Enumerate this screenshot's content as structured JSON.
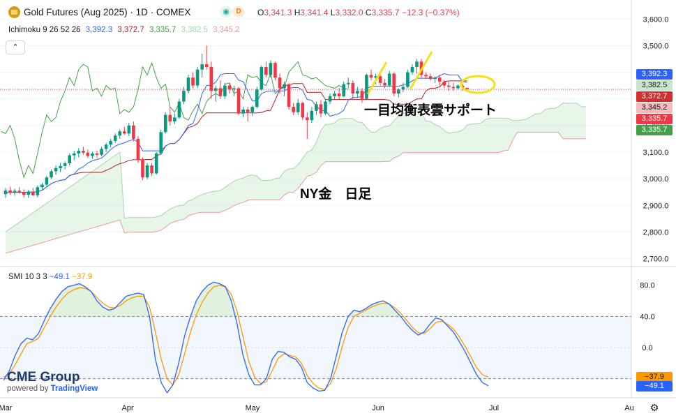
{
  "header": {
    "symbol_title": "Gold Futures (Aug 2025) · 1D · COMEX",
    "eye_icon": "eye-icon",
    "badge": "D",
    "ohlc": {
      "o_label": "O",
      "o": "3,341.3",
      "h_label": "H",
      "h": "3,341.4",
      "l_label": "L",
      "l": "3,332.0",
      "c_label": "C",
      "c": "3,335.7",
      "change": "−12.3 (−0.37%)"
    }
  },
  "ichimoku": {
    "label": "Ichimoku 9 26 52 26",
    "values": [
      "3,392.3",
      "3,372.7",
      "3,335.7",
      "3,382.5",
      "3,345.2"
    ],
    "colors": [
      "#2962ff",
      "#b71c1c",
      "#43a047",
      "#a5d6a7",
      "#ef9a9a"
    ]
  },
  "smi": {
    "label": "SMI 10 3 3",
    "values": [
      "−49.1",
      "−37.9"
    ]
  },
  "price_axis": {
    "ticks": [
      "3,600.0",
      "3,500.0",
      "3,400.0",
      "3,300.0",
      "3,200.0",
      "3,100.0",
      "3,000.0",
      "2,900.0",
      "2,800.0",
      "2,700.0"
    ]
  },
  "smi_axis": {
    "ticks": [
      "80.0",
      "40.0",
      "0.0"
    ]
  },
  "time_axis": {
    "labels": [
      "Mar",
      "Apr",
      "May",
      "Jun",
      "Jul",
      "Au"
    ]
  },
  "price_tags": [
    {
      "text": "3,392.3",
      "color": "#2962ff",
      "text_color": "#ffffff"
    },
    {
      "text": "3,382.5",
      "color": "#c8e6c9",
      "text_color": "#131722"
    },
    {
      "text": "3,372.7",
      "color": "#d32f2f",
      "text_color": "#ffffff"
    },
    {
      "text": "3,345.2",
      "color": "#f8bbbb",
      "text_color": "#131722"
    },
    {
      "text": "3,335.7",
      "color": "#f23645",
      "text_color": "#ffffff"
    },
    {
      "text": "3,335.7",
      "color": "#43a047",
      "text_color": "#ffffff"
    }
  ],
  "smi_tags": [
    {
      "text": "−37.9",
      "color": "#ff9800",
      "text_color": "#131722"
    },
    {
      "text": "−49.1",
      "color": "#2962ff",
      "text_color": "#ffffff"
    }
  ],
  "annotations": {
    "support": "一目均衡表雲サポート",
    "title": "NY金　日足"
  },
  "logo": {
    "main": "CME Group",
    "sub_prefix": "powered by",
    "sub_brand": "TradingView"
  },
  "chart_data": {
    "type": "candlestick",
    "instrument": "Gold Futures (Aug 2025)",
    "interval": "1D",
    "price_range": [
      2670,
      3640
    ],
    "candles": [
      {
        "o": 2942,
        "h": 2965,
        "l": 2928,
        "c": 2956
      },
      {
        "o": 2956,
        "h": 2970,
        "l": 2940,
        "c": 2948
      },
      {
        "o": 2948,
        "h": 2962,
        "l": 2936,
        "c": 2955
      },
      {
        "o": 2955,
        "h": 2968,
        "l": 2945,
        "c": 2950
      },
      {
        "o": 2950,
        "h": 2960,
        "l": 2930,
        "c": 2940
      },
      {
        "o": 2940,
        "h": 2958,
        "l": 2928,
        "c": 2952
      },
      {
        "o": 2952,
        "h": 2965,
        "l": 2935,
        "c": 2938
      },
      {
        "o": 2938,
        "h": 2975,
        "l": 2930,
        "c": 2968
      },
      {
        "o": 2968,
        "h": 2985,
        "l": 2958,
        "c": 2978
      },
      {
        "o": 2978,
        "h": 3010,
        "l": 2970,
        "c": 3005
      },
      {
        "o": 3005,
        "h": 3035,
        "l": 2998,
        "c": 3028
      },
      {
        "o": 3028,
        "h": 3050,
        "l": 3015,
        "c": 3040
      },
      {
        "o": 3040,
        "h": 3060,
        "l": 3025,
        "c": 3048
      },
      {
        "o": 3048,
        "h": 3065,
        "l": 3035,
        "c": 3058
      },
      {
        "o": 3058,
        "h": 3095,
        "l": 3050,
        "c": 3088
      },
      {
        "o": 3088,
        "h": 3105,
        "l": 3070,
        "c": 3095
      },
      {
        "o": 3095,
        "h": 3115,
        "l": 3080,
        "c": 3105
      },
      {
        "o": 3105,
        "h": 3120,
        "l": 3090,
        "c": 3098
      },
      {
        "o": 3098,
        "h": 3110,
        "l": 3078,
        "c": 3085
      },
      {
        "o": 3085,
        "h": 3102,
        "l": 3075,
        "c": 3095
      },
      {
        "o": 3095,
        "h": 3105,
        "l": 3080,
        "c": 3090
      },
      {
        "o": 3090,
        "h": 3120,
        "l": 3085,
        "c": 3112
      },
      {
        "o": 3112,
        "h": 3135,
        "l": 3100,
        "c": 3128
      },
      {
        "o": 3128,
        "h": 3150,
        "l": 3118,
        "c": 3142
      },
      {
        "o": 3142,
        "h": 3170,
        "l": 3135,
        "c": 3162
      },
      {
        "o": 3162,
        "h": 3185,
        "l": 3150,
        "c": 3178
      },
      {
        "o": 3178,
        "h": 3195,
        "l": 3165,
        "c": 3170
      },
      {
        "o": 3170,
        "h": 3210,
        "l": 3160,
        "c": 3200
      },
      {
        "o": 3200,
        "h": 3215,
        "l": 3140,
        "c": 3150
      },
      {
        "o": 3150,
        "h": 3160,
        "l": 3060,
        "c": 3070
      },
      {
        "o": 3070,
        "h": 3080,
        "l": 2995,
        "c": 3005
      },
      {
        "o": 3005,
        "h": 3060,
        "l": 2998,
        "c": 3050
      },
      {
        "o": 3050,
        "h": 3060,
        "l": 3010,
        "c": 3020
      },
      {
        "o": 3020,
        "h": 3100,
        "l": 3015,
        "c": 3095
      },
      {
        "o": 3095,
        "h": 3185,
        "l": 3090,
        "c": 3175
      },
      {
        "o": 3175,
        "h": 3250,
        "l": 3170,
        "c": 3240
      },
      {
        "o": 3240,
        "h": 3270,
        "l": 3200,
        "c": 3215
      },
      {
        "o": 3215,
        "h": 3245,
        "l": 3205,
        "c": 3230
      },
      {
        "o": 3230,
        "h": 3300,
        "l": 3225,
        "c": 3290
      },
      {
        "o": 3290,
        "h": 3345,
        "l": 3280,
        "c": 3330
      },
      {
        "o": 3330,
        "h": 3390,
        "l": 3320,
        "c": 3380
      },
      {
        "o": 3380,
        "h": 3400,
        "l": 3340,
        "c": 3350
      },
      {
        "o": 3350,
        "h": 3420,
        "l": 3340,
        "c": 3410
      },
      {
        "o": 3410,
        "h": 3470,
        "l": 3380,
        "c": 3430
      },
      {
        "o": 3430,
        "h": 3500,
        "l": 3410,
        "c": 3420
      },
      {
        "o": 3420,
        "h": 3440,
        "l": 3300,
        "c": 3330
      },
      {
        "o": 3330,
        "h": 3350,
        "l": 3290,
        "c": 3340
      },
      {
        "o": 3340,
        "h": 3370,
        "l": 3300,
        "c": 3310
      },
      {
        "o": 3310,
        "h": 3360,
        "l": 3300,
        "c": 3350
      },
      {
        "o": 3350,
        "h": 3360,
        "l": 3320,
        "c": 3335
      },
      {
        "o": 3335,
        "h": 3350,
        "l": 3310,
        "c": 3340
      },
      {
        "o": 3340,
        "h": 3345,
        "l": 3240,
        "c": 3245
      },
      {
        "o": 3245,
        "h": 3270,
        "l": 3230,
        "c": 3260
      },
      {
        "o": 3260,
        "h": 3270,
        "l": 3215,
        "c": 3250
      },
      {
        "o": 3250,
        "h": 3275,
        "l": 3235,
        "c": 3270
      },
      {
        "o": 3270,
        "h": 3345,
        "l": 3265,
        "c": 3335
      },
      {
        "o": 3335,
        "h": 3425,
        "l": 3330,
        "c": 3420
      },
      {
        "o": 3420,
        "h": 3440,
        "l": 3380,
        "c": 3390
      },
      {
        "o": 3390,
        "h": 3445,
        "l": 3380,
        "c": 3435
      },
      {
        "o": 3435,
        "h": 3440,
        "l": 3370,
        "c": 3380
      },
      {
        "o": 3380,
        "h": 3395,
        "l": 3320,
        "c": 3340
      },
      {
        "o": 3340,
        "h": 3365,
        "l": 3310,
        "c": 3355
      },
      {
        "o": 3355,
        "h": 3360,
        "l": 3260,
        "c": 3270
      },
      {
        "o": 3270,
        "h": 3285,
        "l": 3240,
        "c": 3250
      },
      {
        "o": 3250,
        "h": 3300,
        "l": 3240,
        "c": 3285
      },
      {
        "o": 3285,
        "h": 3290,
        "l": 3220,
        "c": 3230
      },
      {
        "o": 3230,
        "h": 3250,
        "l": 3150,
        "c": 3220
      },
      {
        "o": 3220,
        "h": 3270,
        "l": 3210,
        "c": 3255
      },
      {
        "o": 3255,
        "h": 3290,
        "l": 3240,
        "c": 3280
      },
      {
        "o": 3280,
        "h": 3295,
        "l": 3230,
        "c": 3245
      },
      {
        "o": 3245,
        "h": 3300,
        "l": 3240,
        "c": 3290
      },
      {
        "o": 3290,
        "h": 3320,
        "l": 3280,
        "c": 3310
      },
      {
        "o": 3310,
        "h": 3330,
        "l": 3295,
        "c": 3320
      },
      {
        "o": 3320,
        "h": 3340,
        "l": 3300,
        "c": 3310
      },
      {
        "o": 3310,
        "h": 3365,
        "l": 3305,
        "c": 3355
      },
      {
        "o": 3355,
        "h": 3380,
        "l": 3340,
        "c": 3360
      },
      {
        "o": 3360,
        "h": 3370,
        "l": 3300,
        "c": 3320
      },
      {
        "o": 3320,
        "h": 3345,
        "l": 3305,
        "c": 3330
      },
      {
        "o": 3330,
        "h": 3340,
        "l": 3285,
        "c": 3300
      },
      {
        "o": 3300,
        "h": 3395,
        "l": 3295,
        "c": 3390
      },
      {
        "o": 3390,
        "h": 3410,
        "l": 3370,
        "c": 3380
      },
      {
        "o": 3380,
        "h": 3395,
        "l": 3355,
        "c": 3385
      },
      {
        "o": 3385,
        "h": 3400,
        "l": 3350,
        "c": 3360
      },
      {
        "o": 3360,
        "h": 3375,
        "l": 3340,
        "c": 3350
      },
      {
        "o": 3350,
        "h": 3405,
        "l": 3345,
        "c": 3395
      },
      {
        "o": 3395,
        "h": 3400,
        "l": 3310,
        "c": 3320
      },
      {
        "o": 3320,
        "h": 3340,
        "l": 3305,
        "c": 3335
      },
      {
        "o": 3335,
        "h": 3360,
        "l": 3325,
        "c": 3345
      },
      {
        "o": 3345,
        "h": 3410,
        "l": 3340,
        "c": 3400
      },
      {
        "o": 3400,
        "h": 3430,
        "l": 3390,
        "c": 3420
      },
      {
        "o": 3420,
        "h": 3450,
        "l": 3395,
        "c": 3440
      },
      {
        "o": 3440,
        "h": 3450,
        "l": 3380,
        "c": 3390
      },
      {
        "o": 3390,
        "h": 3400,
        "l": 3375,
        "c": 3385
      },
      {
        "o": 3385,
        "h": 3395,
        "l": 3370,
        "c": 3375
      },
      {
        "o": 3375,
        "h": 3385,
        "l": 3360,
        "c": 3380
      },
      {
        "o": 3380,
        "h": 3390,
        "l": 3350,
        "c": 3365
      },
      {
        "o": 3365,
        "h": 3370,
        "l": 3340,
        "c": 3350
      },
      {
        "o": 3350,
        "h": 3365,
        "l": 3330,
        "c": 3345
      },
      {
        "o": 3345,
        "h": 3360,
        "l": 3330,
        "c": 3340
      },
      {
        "o": 3340,
        "h": 3355,
        "l": 3335,
        "c": 3350
      },
      {
        "o": 3350,
        "h": 3356,
        "l": 3330,
        "c": 3341
      },
      {
        "o": 3341.3,
        "h": 3341.4,
        "l": 3332.0,
        "c": 3335.7
      }
    ],
    "smi_range": [
      -60,
      95
    ],
    "smi_levels": [
      80,
      40,
      0,
      -40
    ],
    "smi": [
      -42,
      -30,
      -10,
      5,
      12,
      10,
      18,
      35,
      50,
      62,
      72,
      78,
      80,
      82,
      78,
      72,
      60,
      52,
      48,
      50,
      58,
      66,
      68,
      70,
      68,
      40,
      -15,
      -45,
      -58,
      -48,
      -20,
      15,
      40,
      60,
      72,
      80,
      84,
      82,
      78,
      60,
      30,
      -10,
      -35,
      -48,
      -48,
      -40,
      -15,
      -5,
      -6,
      -12,
      -15,
      -25,
      -45,
      -52,
      -56,
      -55,
      -40,
      -10,
      20,
      40,
      48,
      46,
      50,
      55,
      58,
      60,
      56,
      48,
      40,
      30,
      22,
      16,
      20,
      30,
      38,
      36,
      28,
      20,
      8,
      -5,
      -20,
      -35,
      -45,
      -49.1
    ],
    "smi_signal": [
      -38,
      -34,
      -22,
      -8,
      5,
      8,
      12,
      26,
      40,
      52,
      62,
      70,
      74,
      77,
      76,
      72,
      64,
      57,
      52,
      51,
      54,
      60,
      64,
      66,
      66,
      52,
      20,
      -15,
      -40,
      -48,
      -35,
      -8,
      20,
      42,
      58,
      70,
      78,
      80,
      78,
      68,
      46,
      14,
      -18,
      -38,
      -46,
      -44,
      -30,
      -14,
      -8,
      -10,
      -12,
      -20,
      -36,
      -46,
      -52,
      -54,
      -46,
      -26,
      2,
      26,
      40,
      44,
      48,
      52,
      55,
      57,
      56,
      51,
      44,
      35,
      26,
      19,
      18,
      24,
      32,
      34,
      30,
      24,
      14,
      2,
      -12,
      -26,
      -35,
      -37.9
    ]
  }
}
